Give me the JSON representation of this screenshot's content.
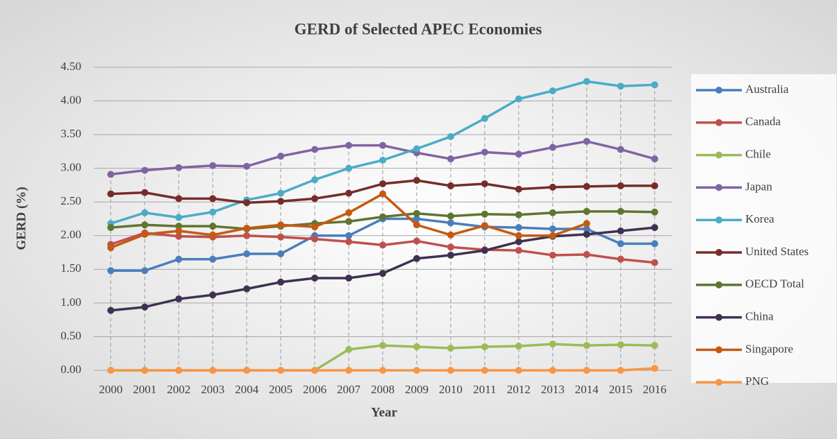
{
  "chart_data": {
    "type": "line",
    "title": "GERD of Selected APEC Economies",
    "x_label": "Year",
    "y_label": "GERD (%)",
    "categories": [
      "2000",
      "2001",
      "2002",
      "2003",
      "2004",
      "2005",
      "2006",
      "2007",
      "2008",
      "2009",
      "2010",
      "2011",
      "2012",
      "2013",
      "2014",
      "2015",
      "2016"
    ],
    "ylim": [
      0,
      4.5
    ],
    "yticks": [
      {
        "value": 0,
        "label": "0.00"
      },
      {
        "value": 0.5,
        "label": "0.50"
      },
      {
        "value": 1,
        "label": "1.00"
      },
      {
        "value": 1.5,
        "label": "1.50"
      },
      {
        "value": 2,
        "label": "2.00"
      },
      {
        "value": 2.5,
        "label": "2.50"
      },
      {
        "value": 3,
        "label": "3.00"
      },
      {
        "value": 3.5,
        "label": "3.50"
      },
      {
        "value": 4,
        "label": "4.00"
      },
      {
        "value": 4.5,
        "label": "4.50"
      }
    ],
    "grid": true,
    "legend": "right",
    "series": [
      {
        "name": "Australia",
        "color": "#4a7ebb",
        "values": [
          1.48,
          1.48,
          1.65,
          1.65,
          1.73,
          1.73,
          2.0,
          2.0,
          2.25,
          2.25,
          2.19,
          2.13,
          2.12,
          2.1,
          2.1,
          1.88,
          1.88
        ]
      },
      {
        "name": "Canada",
        "color": "#c0504d",
        "values": [
          1.87,
          2.04,
          1.99,
          1.98,
          2.0,
          1.98,
          1.95,
          1.91,
          1.86,
          1.92,
          1.83,
          1.79,
          1.78,
          1.71,
          1.72,
          1.65,
          1.6
        ]
      },
      {
        "name": "Chile",
        "color": "#9bbb59",
        "values": [
          0,
          0,
          0,
          0,
          0,
          0,
          0,
          0.31,
          0.37,
          0.35,
          0.33,
          0.35,
          0.36,
          0.39,
          0.37,
          0.38,
          0.37
        ]
      },
      {
        "name": "Japan",
        "color": "#8064a2",
        "values": [
          2.91,
          2.97,
          3.01,
          3.04,
          3.03,
          3.18,
          3.28,
          3.34,
          3.34,
          3.23,
          3.14,
          3.24,
          3.21,
          3.31,
          3.4,
          3.28,
          3.14
        ]
      },
      {
        "name": "Korea",
        "color": "#4bacc6",
        "values": [
          2.18,
          2.34,
          2.27,
          2.35,
          2.53,
          2.63,
          2.83,
          3.0,
          3.12,
          3.29,
          3.47,
          3.74,
          4.03,
          4.15,
          4.29,
          4.22,
          4.24
        ]
      },
      {
        "name": "United States",
        "color": "#772c2a",
        "values": [
          2.62,
          2.64,
          2.55,
          2.55,
          2.49,
          2.51,
          2.55,
          2.63,
          2.77,
          2.82,
          2.74,
          2.77,
          2.69,
          2.72,
          2.73,
          2.74,
          2.74
        ]
      },
      {
        "name": "OECD Total",
        "color": "#5f7530",
        "values": [
          2.12,
          2.16,
          2.14,
          2.14,
          2.1,
          2.14,
          2.18,
          2.21,
          2.28,
          2.33,
          2.29,
          2.32,
          2.31,
          2.34,
          2.36,
          2.36,
          2.35
        ]
      },
      {
        "name": "China",
        "color": "#3f3151",
        "values": [
          0.89,
          0.94,
          1.06,
          1.12,
          1.21,
          1.31,
          1.37,
          1.37,
          1.44,
          1.66,
          1.71,
          1.78,
          1.91,
          1.99,
          2.02,
          2.07,
          2.12
        ]
      },
      {
        "name": "Singapore",
        "color": "#c55a11",
        "values": [
          1.82,
          2.02,
          2.07,
          2.01,
          2.11,
          2.16,
          2.13,
          2.34,
          2.62,
          2.16,
          2.01,
          2.15,
          2.0,
          2.0,
          2.18,
          null,
          null
        ]
      },
      {
        "name": "PNG",
        "color": "#f79646",
        "values": [
          0,
          0,
          0,
          0,
          0,
          0,
          0,
          0,
          0,
          0,
          0,
          0,
          0,
          0,
          0,
          0,
          0.03
        ]
      }
    ]
  }
}
